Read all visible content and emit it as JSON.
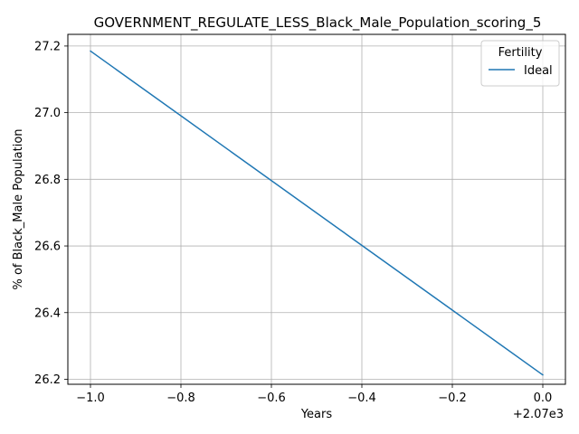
{
  "chart_data": {
    "type": "line",
    "title": "GOVERNMENT_REGULATE_LESS_Black_Male_Population_scoring_5",
    "xlabel": "Years",
    "ylabel": "% of Black_Male Population",
    "x_offset_label": "+2.07e3",
    "x": [
      2069,
      2070
    ],
    "xlim": [
      2068.95,
      2070.05
    ],
    "ylim": [
      26.185,
      27.235
    ],
    "x_ticks": [
      2069.0,
      2069.2,
      2069.4,
      2069.6,
      2069.8,
      2070.0
    ],
    "x_tick_labels": [
      "−1.0",
      "−0.8",
      "−0.6",
      "−0.4",
      "−0.2",
      "0.0"
    ],
    "y_ticks": [
      26.2,
      26.4,
      26.6,
      26.8,
      27.0,
      27.2
    ],
    "y_tick_labels": [
      "26.2",
      "26.4",
      "26.6",
      "26.8",
      "27.0",
      "27.2"
    ],
    "grid": true,
    "legend": {
      "title": "Fertility",
      "placement": "top-right"
    },
    "series": [
      {
        "name": "Ideal",
        "color": "#1f77b4",
        "values": [
          27.185,
          26.213
        ]
      }
    ]
  }
}
